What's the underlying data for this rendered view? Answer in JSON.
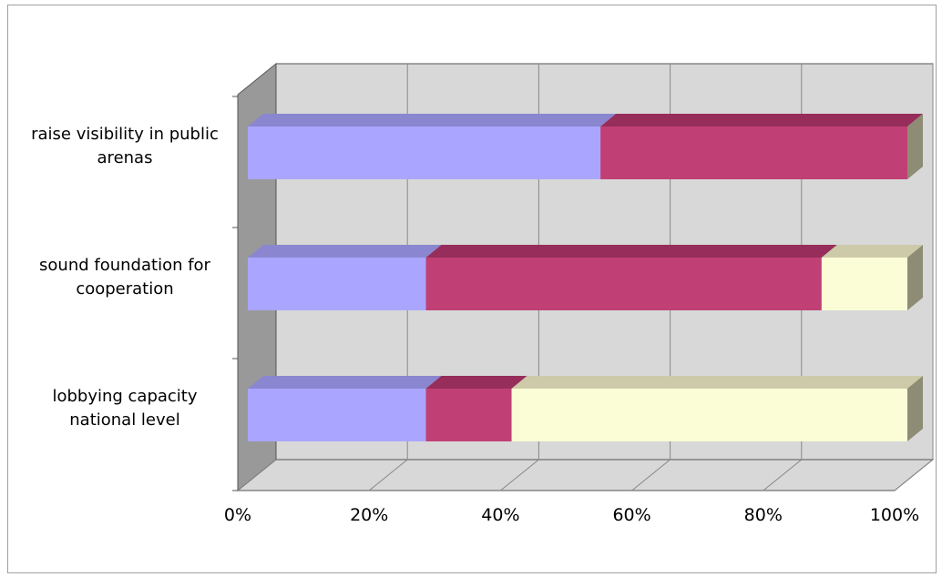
{
  "chart_data": {
    "type": "bar",
    "orientation": "horizontal",
    "stacked": "percent",
    "three_d": true,
    "categories": [
      [
        "raise visibility in public",
        "arenas"
      ],
      [
        "sound foundation for",
        "cooperation"
      ],
      [
        "lobbying capacity",
        "national level"
      ]
    ],
    "series": [
      {
        "values": [
          54,
          27,
          27
        ],
        "color": "#aaa6ff",
        "top_color": "#8a86d0"
      },
      {
        "values": [
          47,
          60,
          13
        ],
        "color": "#c04075",
        "top_color": "#962d5a"
      },
      {
        "values": [
          0,
          13,
          60
        ],
        "color": "#fbfdd6",
        "top_color": "#cccaa8"
      }
    ],
    "x_ticks": [
      "0%",
      "20%",
      "40%",
      "60%",
      "80%",
      "100%"
    ],
    "xlim": [
      0,
      100
    ],
    "grid": true,
    "legend": "none",
    "colors": {
      "plot_wall": "#d8d8d8",
      "side_wall": "#999999",
      "floor": "#d8d8d8",
      "grid": "#888888",
      "frame_border": "#a0a0a0"
    }
  }
}
